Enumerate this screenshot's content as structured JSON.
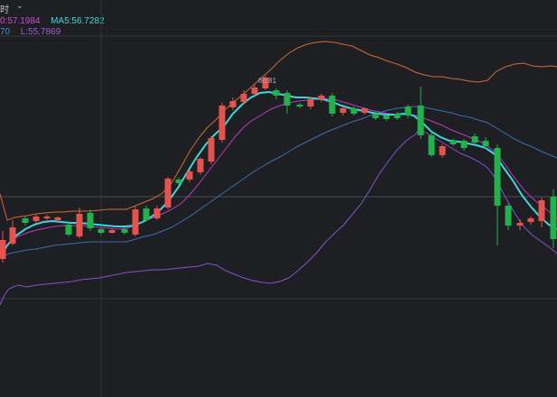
{
  "header": {
    "period": "时",
    "caret": "⌄"
  },
  "legend": {
    "row1_a": "0:57.1984",
    "row1_b": "MA5:56.7282",
    "row2_a": "70",
    "row2_b": "L:55.7869"
  },
  "colors": {
    "background": "#1e1f22",
    "up": "#e4534d",
    "down": "#22b24c",
    "ma5": "#41d6db",
    "ma_magenta": "#bb3bbd",
    "ma_blue": "#3a6fb3",
    "boll_upper": "#cf6a3d",
    "boll_lower": "#8a4fd0",
    "legend_magenta": "#d04ad6",
    "legend_cyan": "#41d6db",
    "legend_blue": "#4f8ad6",
    "legend_purple": "#a05cd6"
  },
  "annotations": {
    "peak_label": "60.81"
  }
}
